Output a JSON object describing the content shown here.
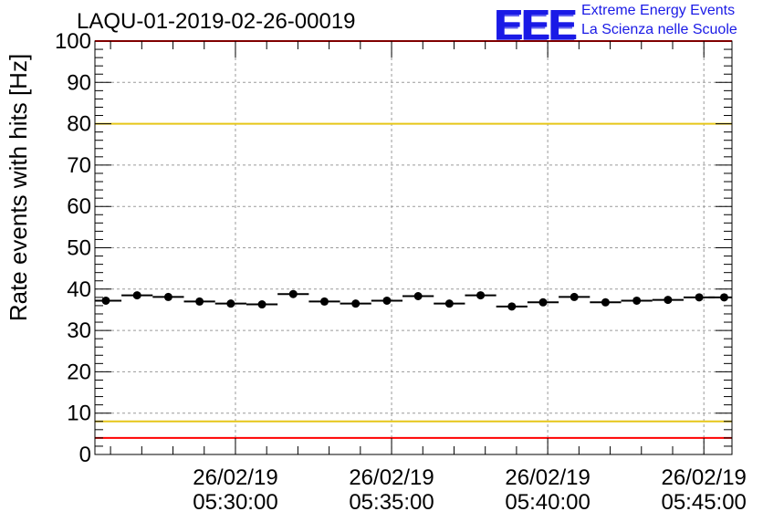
{
  "header": {
    "title": "LAQU-01-2019-02-26-00019",
    "logo_mark": "EEE",
    "logo_line1": "Extreme Energy Events",
    "logo_line2": "La Scienza nelle Scuole"
  },
  "colors": {
    "axis": "#000000",
    "grid": "#9a9a9a",
    "threshold_red": "#ff0000",
    "threshold_yellow": "#e6c619",
    "marker": "#000000",
    "logo": "#1a1ae6"
  },
  "chart_data": {
    "type": "scatter",
    "title": "LAQU-01-2019-02-26-00019",
    "xlabel": "",
    "ylabel": "Rate events with hits [Hz]",
    "ylim": [
      0,
      100
    ],
    "xlim_minutes": [
      25.5,
      45.9
    ],
    "y_ticks": [
      "0",
      "10",
      "20",
      "30",
      "40",
      "50",
      "60",
      "70",
      "80",
      "90",
      "100"
    ],
    "x_ticks": [
      {
        "minute": 30,
        "date": "26/02/19",
        "time": "05:30:00"
      },
      {
        "minute": 35,
        "date": "26/02/19",
        "time": "05:35:00"
      },
      {
        "minute": 40,
        "date": "26/02/19",
        "time": "05:40:00"
      },
      {
        "minute": 45,
        "date": "26/02/19",
        "time": "05:45:00"
      }
    ],
    "grid": true,
    "thresholds": [
      {
        "value": 100,
        "color": "red"
      },
      {
        "value": 80,
        "color": "yellow"
      },
      {
        "value": 8,
        "color": "yellow"
      },
      {
        "value": 4,
        "color": "red"
      }
    ],
    "series": [
      {
        "name": "rate",
        "x_minutes": [
          25.85,
          26.85,
          27.85,
          28.85,
          29.85,
          30.85,
          31.85,
          32.85,
          33.85,
          34.85,
          35.85,
          36.85,
          37.85,
          38.85,
          39.85,
          40.85,
          41.85,
          42.85,
          43.85,
          44.85,
          45.65
        ],
        "bin_half_width_minutes": 0.5,
        "values": [
          37.2,
          38.5,
          38.1,
          37.0,
          36.5,
          36.3,
          38.8,
          37.0,
          36.5,
          37.2,
          38.3,
          36.5,
          38.5,
          35.8,
          36.8,
          38.1,
          36.8,
          37.2,
          37.4,
          38.0,
          38.0
        ]
      }
    ]
  }
}
